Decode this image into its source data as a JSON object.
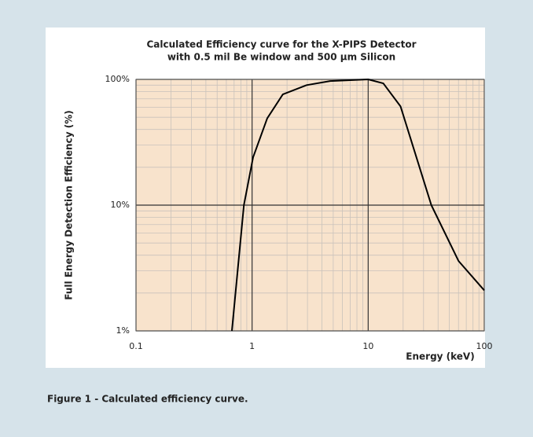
{
  "chart_data": {
    "type": "line",
    "title": [
      "Calculated Efficiency curve for the X-PIPS Detector",
      "with 0.5 mil Be window and 500 µm Silicon"
    ],
    "x_label": "Energy (keV)",
    "y_label": "Full Energy Detection Efficiency (%)",
    "x": [
      0.67,
      0.85,
      1.02,
      1.35,
      1.84,
      2.95,
      4.7,
      10,
      13.5,
      19,
      35,
      60,
      100
    ],
    "series": [
      {
        "name": "Efficiency",
        "color": "#000000",
        "values": [
          1,
          10,
          24,
          49,
          76,
          90,
          97,
          100,
          93,
          61,
          10,
          3.6,
          2.1
        ]
      }
    ],
    "xlim": [
      0.1,
      100
    ],
    "ylim": [
      1,
      100
    ],
    "xticks": [
      0.1,
      1,
      10,
      100
    ],
    "yticks": [
      {
        "value": 1,
        "label": "1%"
      },
      {
        "value": 10,
        "label": "10%"
      },
      {
        "value": 100,
        "label": "100%"
      }
    ],
    "xscale": "log",
    "yscale": "log",
    "grid": true,
    "minor_grid": true,
    "plot_background": "#f8e3cc"
  },
  "caption": "Figure 1 - Calculated efficiency curve."
}
